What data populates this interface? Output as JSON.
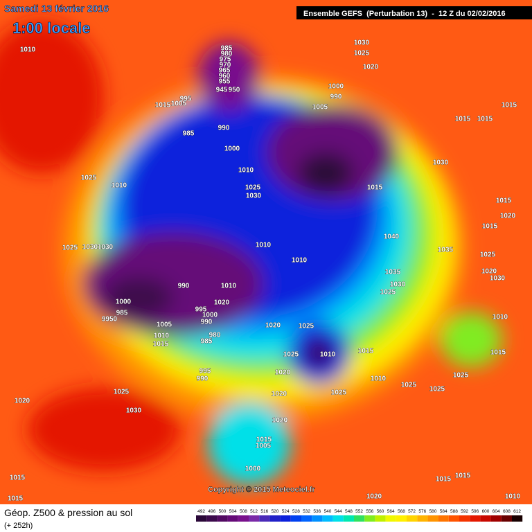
{
  "header": {
    "date": "Samedi 13 février 2016",
    "local_time": "1:00 locale",
    "model": "Ensemble GEFS  (Perturbation 13)  -  12 Z du 02/02/2016"
  },
  "footer": {
    "title": "Géop. Z500 & pression au sol",
    "lead": "(+ 252h)",
    "copyright": "Copyright © 2015 Meteociel.fr"
  },
  "scale": {
    "values": [
      492,
      496,
      500,
      504,
      508,
      512,
      516,
      520,
      524,
      528,
      532,
      536,
      540,
      544,
      548,
      552,
      556,
      560,
      564,
      568,
      572,
      576,
      580,
      584,
      588,
      592,
      596,
      600,
      604,
      608,
      612
    ],
    "colors": [
      "#2a0838",
      "#3c0a4c",
      "#520a62",
      "#650a78",
      "#78108c",
      "#7a2aa8",
      "#4a2ab8",
      "#2020c8",
      "#0a20dc",
      "#0040f0",
      "#0064ff",
      "#0090ff",
      "#00bcff",
      "#00e0e8",
      "#00e8b0",
      "#30e060",
      "#80ec20",
      "#c0f000",
      "#f0f800",
      "#fff000",
      "#ffd400",
      "#ffb400",
      "#ff9400",
      "#ff7400",
      "#ff5400",
      "#f43400",
      "#e41800",
      "#c80800",
      "#a00000",
      "#680000",
      "#180000"
    ]
  },
  "isobars": [
    1010,
    1030,
    1025,
    1020,
    985,
    980,
    975,
    970,
    965,
    960,
    955,
    945,
    950,
    1000,
    990,
    1005,
    995,
    1005,
    1015,
    1015,
    1015,
    1015,
    985,
    990,
    1000,
    1010,
    1030,
    1025,
    1030,
    1015,
    1025,
    1010,
    1015,
    1020,
    1015,
    1040,
    1010,
    1025,
    1030,
    1030,
    1035,
    1025,
    1010,
    1035,
    1020,
    1030,
    1030,
    990,
    1010,
    1025,
    1020,
    995,
    1000,
    985,
    1000,
    990,
    1010,
    9950,
    1020,
    1025,
    1005,
    980,
    1010,
    985,
    1015,
    1010,
    1025,
    1015,
    1015,
    995,
    990,
    1020,
    1025,
    1010,
    1025,
    1025,
    1025,
    1020,
    1030,
    1025,
    1020,
    1020,
    1015,
    1005,
    1000,
    1015,
    1015,
    1015,
    1015,
    1020,
    1010
  ]
}
